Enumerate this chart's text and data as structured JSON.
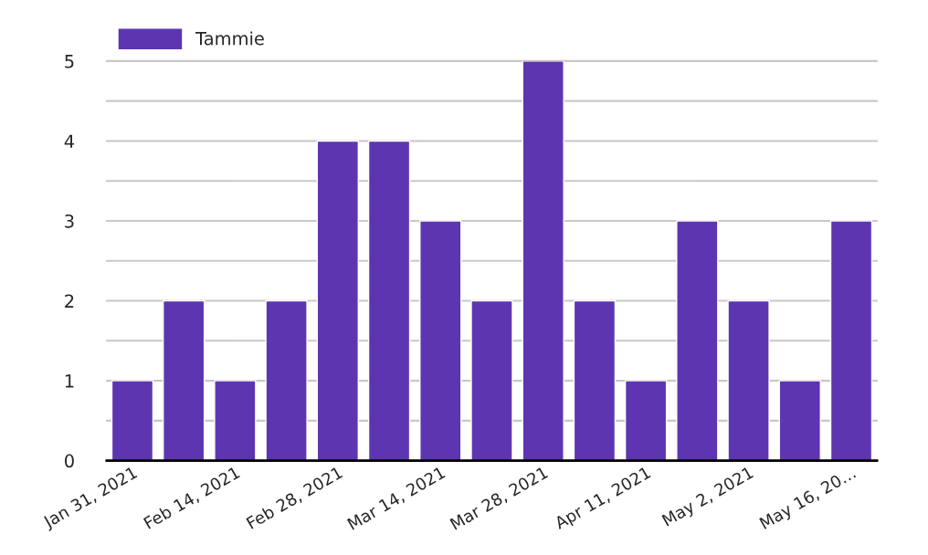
{
  "chart_data": {
    "type": "bar",
    "categories": [
      "Jan 31, 2021",
      null,
      "Feb 14, 2021",
      null,
      "Feb 28, 2021",
      null,
      "Mar 14, 2021",
      null,
      "Mar 28, 2021",
      null,
      "Apr 11, 2021",
      null,
      "May 2, 2021",
      null,
      "May 16, 20…"
    ],
    "series": [
      {
        "name": "Tammie",
        "color": "#5e35b1",
        "values": [
          1,
          2,
          1,
          2,
          4,
          4,
          3,
          2,
          5,
          2,
          1,
          3,
          2,
          1,
          3
        ]
      }
    ],
    "ylim": [
      0,
      5
    ],
    "yticks": [
      0,
      {
        "value": 0.5,
        "label": null
      },
      1,
      {
        "value": 1.5,
        "label": null
      },
      2,
      {
        "value": 2.5,
        "label": null
      },
      3,
      {
        "value": 3.5,
        "label": null
      },
      4,
      {
        "value": 4.5,
        "label": null
      },
      5
    ],
    "grid": "y",
    "legend": "top left"
  }
}
